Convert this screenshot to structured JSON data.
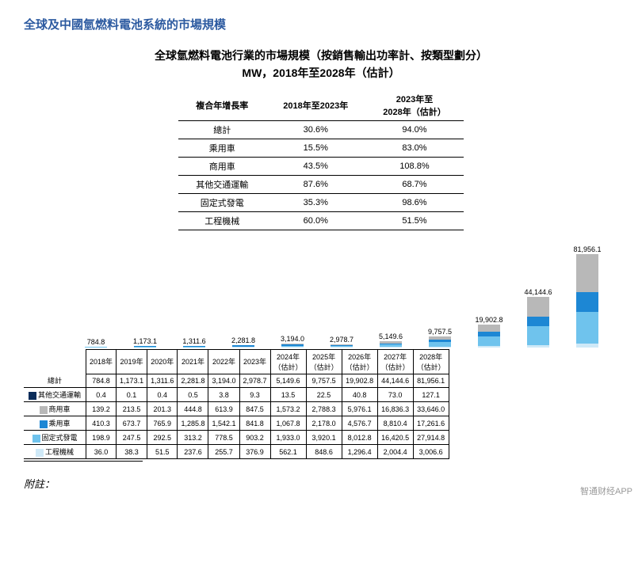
{
  "title_main": "全球及中國氫燃料電池系統的市場規模",
  "title_sub1": "全球氫燃料電池行業的市場規模（按銷售輸出功率計、按類型劃分）",
  "title_sub2": "MW，2018年至2028年（估計）",
  "cagr": {
    "head": {
      "c0": "複合年增長率",
      "c1": "2018年至2023年",
      "c2": "2023年至\n2028年（估計）"
    },
    "rows": [
      {
        "label": "總計",
        "a": "30.6%",
        "b": "94.0%"
      },
      {
        "label": "乘用車",
        "a": "15.5%",
        "b": "83.0%"
      },
      {
        "label": "商用車",
        "a": "43.5%",
        "b": "108.8%"
      },
      {
        "label": "其他交通運輸",
        "a": "87.6%",
        "b": "68.7%"
      },
      {
        "label": "固定式發電",
        "a": "35.3%",
        "b": "98.6%"
      },
      {
        "label": "工程機械",
        "a": "60.0%",
        "b": "51.5%"
      }
    ]
  },
  "chart": {
    "max_value": 82000,
    "colors": {
      "other_transport": "#0a2c5a",
      "commercial": "#b8b8b8",
      "passenger": "#1d87d4",
      "stationary": "#6fc3ed",
      "engineering": "#cfe9f7"
    },
    "years": [
      "2018年",
      "2019年",
      "2020年",
      "2021年",
      "2022年",
      "2023年",
      "2024年\n（估計）",
      "2025年\n（估計）",
      "2026年\n（估計）",
      "2027年\n（估計）",
      "2028年\n（估計）"
    ],
    "year_labels_flat": [
      "2018年",
      "2019年",
      "2020年",
      "2021年",
      "2022年",
      "2023年",
      "2024年",
      "2025年",
      "2026年",
      "2027年",
      "2028年"
    ],
    "year_labels_sub": [
      "",
      "",
      "",
      "",
      "",
      "",
      "（估計）",
      "（估計）",
      "（估計）",
      "（估計）",
      "（估計）"
    ],
    "totals": [
      "784.8",
      "1,173.1",
      "1,311.6",
      "2,281.8",
      "3,194.0",
      "2,978.7",
      "5,149.6",
      "9,757.5",
      "19,902.8",
      "44,144.6",
      "81,956.1"
    ],
    "series": {
      "total": [
        784.8,
        1173.1,
        1311.6,
        2281.8,
        3194.0,
        2978.7,
        5149.6,
        9757.5,
        19902.8,
        44144.6,
        81956.1
      ],
      "other_transport": [
        0.4,
        0.1,
        0.4,
        0.5,
        3.8,
        9.3,
        13.5,
        22.5,
        40.8,
        73.0,
        127.1
      ],
      "commercial": [
        139.2,
        213.5,
        201.3,
        444.8,
        613.9,
        847.5,
        1573.2,
        2788.3,
        5976.1,
        16836.3,
        33646.0
      ],
      "passenger": [
        410.3,
        673.7,
        765.9,
        1285.8,
        1542.1,
        841.8,
        1067.8,
        2178.0,
        4576.7,
        8810.4,
        17261.6
      ],
      "stationary": [
        198.9,
        247.5,
        292.5,
        313.2,
        778.5,
        903.2,
        1933.0,
        3920.1,
        8012.8,
        16420.5,
        27914.8
      ],
      "engineering": [
        36.0,
        38.3,
        51.5,
        237.6,
        255.7,
        376.9,
        562.1,
        848.6,
        1296.4,
        2004.4,
        3006.6
      ]
    }
  },
  "data_table": {
    "row_labels": {
      "total": "總計",
      "other_transport": "其他交通運輸",
      "commercial": "商用車",
      "passenger": "乘用車",
      "stationary": "固定式發電",
      "engineering": "工程機械"
    },
    "cells": {
      "total": [
        "784.8",
        "1,173.1",
        "1,311.6",
        "2,281.8",
        "3,194.0",
        "2,978.7",
        "5,149.6",
        "9,757.5",
        "19,902.8",
        "44,144.6",
        "81,956.1"
      ],
      "other_transport": [
        "0.4",
        "0.1",
        "0.4",
        "0.5",
        "3.8",
        "9.3",
        "13.5",
        "22.5",
        "40.8",
        "73.0",
        "127.1"
      ],
      "commercial": [
        "139.2",
        "213.5",
        "201.3",
        "444.8",
        "613.9",
        "847.5",
        "1,573.2",
        "2,788.3",
        "5,976.1",
        "16,836.3",
        "33,646.0"
      ],
      "passenger": [
        "410.3",
        "673.7",
        "765.9",
        "1,285.8",
        "1,542.1",
        "841.8",
        "1,067.8",
        "2,178.0",
        "4,576.7",
        "8,810.4",
        "17,261.6"
      ],
      "stationary": [
        "198.9",
        "247.5",
        "292.5",
        "313.2",
        "778.5",
        "903.2",
        "1,933.0",
        "3,920.1",
        "8,012.8",
        "16,420.5",
        "27,914.8"
      ],
      "engineering": [
        "36.0",
        "38.3",
        "51.5",
        "237.6",
        "255.7",
        "376.9",
        "562.1",
        "848.6",
        "1,296.4",
        "2,004.4",
        "3,006.6"
      ]
    }
  },
  "footer": "附註：",
  "watermark": "智通财经APP"
}
